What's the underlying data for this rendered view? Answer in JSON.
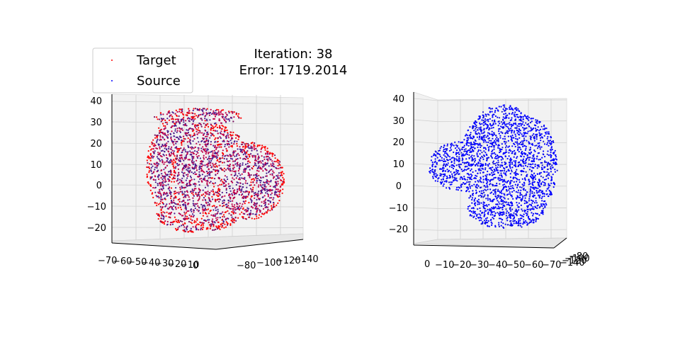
{
  "title": {
    "iteration_label": "Iteration: 38",
    "error_label": "Error: 1719.2014"
  },
  "legend": {
    "placement": "top-left",
    "entries": [
      {
        "label": "Target",
        "color": "#ff0000"
      },
      {
        "label": "Source",
        "color": "#0000ff"
      }
    ]
  },
  "chart_data": [
    {
      "type": "scatter",
      "projection": "3d",
      "view": "left",
      "series": [
        {
          "name": "Target",
          "color": "#ff0000"
        },
        {
          "name": "Source",
          "color": "#0000ff"
        }
      ],
      "z_ticks": [
        "40",
        "30",
        "20",
        "10",
        "0",
        "−10",
        "−20"
      ],
      "x_ticks": [
        "−70",
        "−60",
        "−50",
        "−40",
        "−30",
        "−20",
        "−10",
        "0"
      ],
      "y_ticks": [
        "−80",
        "−100",
        "−120",
        "−140"
      ],
      "grid": true
    },
    {
      "type": "scatter",
      "projection": "3d",
      "view": "right",
      "series": [
        {
          "name": "Source",
          "color": "#0000ff"
        }
      ],
      "z_ticks": [
        "40",
        "30",
        "20",
        "10",
        "0",
        "−10",
        "−20"
      ],
      "x_ticks": [
        "0",
        "−10",
        "−20",
        "−30",
        "−40",
        "−50",
        "−60",
        "−70"
      ],
      "y_ticks": [
        "−140",
        "−120",
        "−100",
        "−80"
      ],
      "grid": true
    }
  ]
}
